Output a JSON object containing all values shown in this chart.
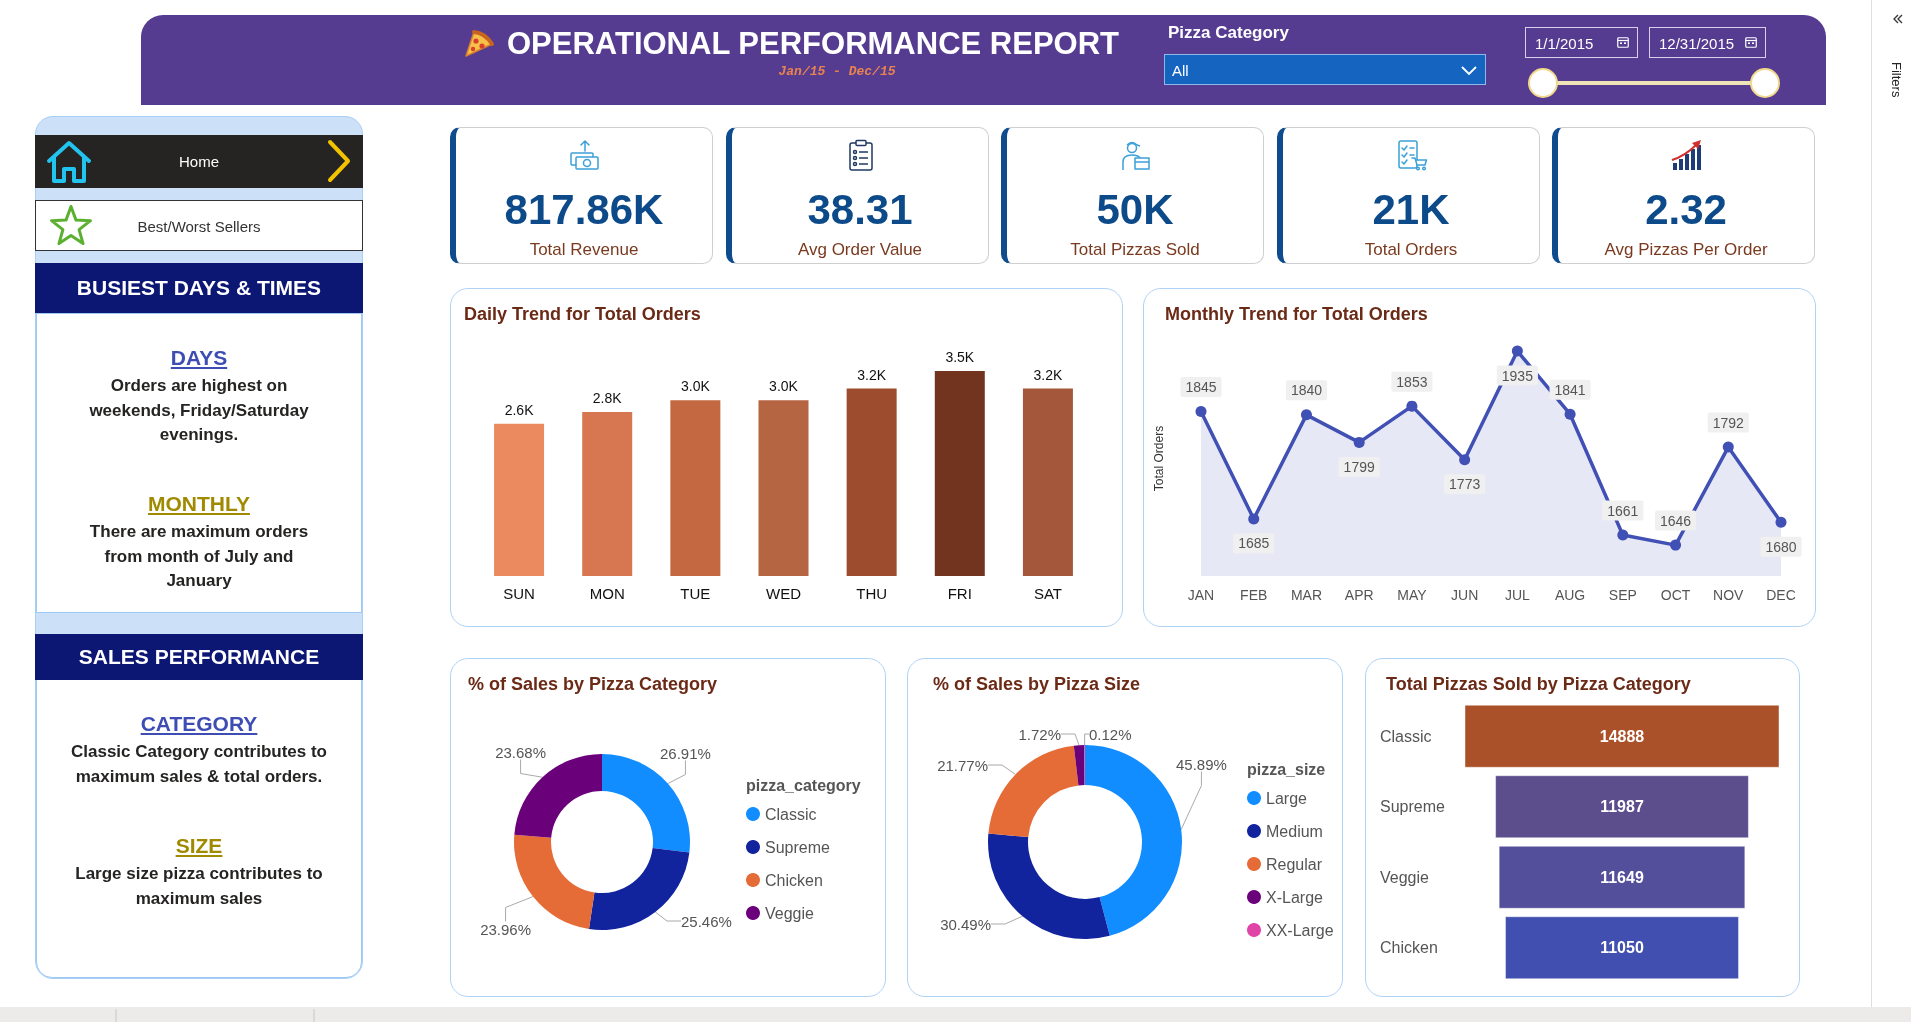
{
  "chart_data": [
    {
      "type": "other",
      "title": "OPERATIONAL PERFORMANCE REPORT",
      "subtitle": "Jan/15 - Dec/15",
      "annotations": [
        "Pizza Category",
        "All",
        "1/1/2015",
        "12/31/2015"
      ]
    },
    {
      "type": "other",
      "annotations": [
        "Filters"
      ]
    },
    {
      "type": "other",
      "annotations": [
        "Home",
        "Best/Worst Sellers",
        "BUSIEST DAYS & TIMES",
        "DAYS",
        "Orders are highest on weekends, Friday/Saturday evenings.",
        "MONTHLY",
        "There are maximum orders from month of July and January",
        "SALES PERFORMANCE",
        "CATEGORY",
        "Classic Category contributes to maximum sales & total orders.",
        "SIZE",
        "Large size pizza contributes to maximum sales"
      ]
    },
    {
      "type": "other",
      "annotations": [
        "817.86K",
        "Total Revenue",
        "38.31",
        "Avg Order Value",
        "50K",
        "Total Pizzas Sold",
        "21K",
        "Total Orders",
        "2.32",
        "Avg Pizzas Per Order"
      ]
    },
    {
      "type": "bar",
      "title": "Daily Trend for Total Orders",
      "categories": [
        "SUN",
        "MON",
        "TUE",
        "WED",
        "THU",
        "FRI",
        "SAT"
      ],
      "values": [
        2600,
        2800,
        3000,
        3000,
        3200,
        3500,
        3200
      ],
      "value_labels": [
        "2.6K",
        "2.8K",
        "3.0K",
        "3.0K",
        "3.2K",
        "3.5K",
        "3.2K"
      ],
      "colors": [
        "#eb8a5e",
        "#d77751",
        "#c36841",
        "#b66543",
        "#9d4d2d",
        "#73341f",
        "#a4573a"
      ],
      "tick_labels": "x"
    },
    {
      "type": "area",
      "title": "Monthly Trend for Total Orders",
      "ylabel": "Total Orders",
      "categories": [
        "JAN",
        "FEB",
        "MAR",
        "APR",
        "MAY",
        "JUN",
        "JUL",
        "AUG",
        "SEP",
        "OCT",
        "NOV",
        "DEC"
      ],
      "values": [
        1845,
        1685,
        1840,
        1799,
        1853,
        1773,
        1935,
        1841,
        1661,
        1646,
        1792,
        1680
      ],
      "color": "#4150b4",
      "marker": "circle",
      "line_style": "solid",
      "data_labels": true,
      "tick_labels": "x"
    },
    {
      "type": "donut",
      "title": "% of Sales by Pizza Category",
      "legend_title": "pizza_category",
      "legend": "right",
      "categories": [
        "Classic",
        "Supreme",
        "Chicken",
        "Veggie"
      ],
      "values": [
        26.91,
        25.46,
        23.96,
        23.68
      ],
      "value_labels": [
        "26.91%",
        "25.46%",
        "23.96%",
        "23.68%"
      ],
      "colors": [
        "#118dff",
        "#12239e",
        "#e66c37",
        "#6b007b"
      ]
    },
    {
      "type": "donut",
      "title": "% of Sales by Pizza Size",
      "legend_title": "pizza_size",
      "legend": "right",
      "categories": [
        "Large",
        "Medium",
        "Regular",
        "X-Large",
        "XX-Large"
      ],
      "values": [
        45.89,
        30.49,
        21.77,
        1.72,
        0.12
      ],
      "value_labels": [
        "45.89%",
        "30.49%",
        "21.77%",
        "1.72%",
        "0.12%"
      ],
      "colors": [
        "#118dff",
        "#12239e",
        "#e66c37",
        "#6b007b",
        "#e044a7"
      ]
    },
    {
      "type": "other",
      "title": "Total Pizzas Sold by Pizza Category",
      "categories": [
        "Classic",
        "Supreme",
        "Veggie",
        "Chicken"
      ],
      "values": [
        14888,
        11987,
        11649,
        11050
      ],
      "colors": [
        "#ab5129",
        "#5c4e8d",
        "#534f9b",
        "#4150b0"
      ],
      "data_labels": true
    }
  ]
}
